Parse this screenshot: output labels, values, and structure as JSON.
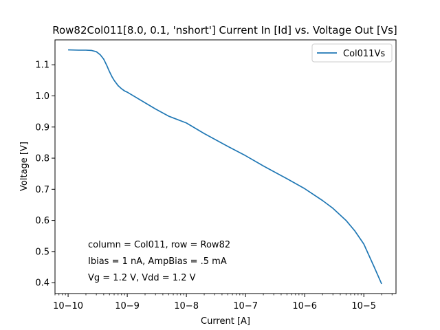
{
  "chart_data": {
    "type": "line",
    "title": "Row82Col011[8.0, 0.1, 'nshort'] Current In [Id] vs. Voltage Out [Vs]",
    "xlabel": "Current [A]",
    "ylabel": "Voltage [V]",
    "xscale": "log",
    "xlim": [
      6e-11,
      3.5e-05
    ],
    "ylim": [
      0.365,
      1.18
    ],
    "xticks": [
      {
        "value": 1e-10,
        "label": "10−10"
      },
      {
        "value": 1e-09,
        "label": "10−9"
      },
      {
        "value": 1e-08,
        "label": "10−8"
      },
      {
        "value": 1e-07,
        "label": "10−7"
      },
      {
        "value": 1e-06,
        "label": "10−6"
      },
      {
        "value": 1e-05,
        "label": "10−5"
      }
    ],
    "yticks": [
      0.4,
      0.5,
      0.6,
      0.7,
      0.8,
      0.9,
      1.0,
      1.1
    ],
    "ytick_labels": [
      "0.4",
      "0.5",
      "0.6",
      "0.7",
      "0.8",
      "0.9",
      "1.0",
      "1.1"
    ],
    "grid": false,
    "legend": {
      "placement": "top-right"
    },
    "series": [
      {
        "name": "Col011Vs",
        "color": "#1f77b4",
        "x": [
          1e-10,
          1.5e-10,
          2e-10,
          2.5e-10,
          3e-10,
          3.5e-10,
          4e-10,
          4.5e-10,
          5e-10,
          5.5e-10,
          6e-10,
          7e-10,
          8e-10,
          9e-10,
          1e-09,
          2e-09,
          3e-09,
          5e-09,
          1e-08,
          2e-08,
          5e-08,
          1e-07,
          2e-07,
          5e-07,
          1e-06,
          2e-06,
          3e-06,
          5e-06,
          7e-06,
          1e-05,
          1.5e-05,
          2e-05
        ],
        "y": [
          1.148,
          1.147,
          1.147,
          1.146,
          1.142,
          1.132,
          1.118,
          1.098,
          1.078,
          1.062,
          1.05,
          1.033,
          1.023,
          1.016,
          1.012,
          0.978,
          0.958,
          0.935,
          0.913,
          0.879,
          0.838,
          0.808,
          0.775,
          0.734,
          0.702,
          0.664,
          0.639,
          0.6,
          0.567,
          0.524,
          0.45,
          0.396
        ]
      }
    ],
    "annotations": [
      "column = Col011, row = Row82",
      "Ibias = 1 nA, AmpBias = .5 mA",
      "Vg = 1.2 V, Vdd = 1.2 V"
    ]
  }
}
